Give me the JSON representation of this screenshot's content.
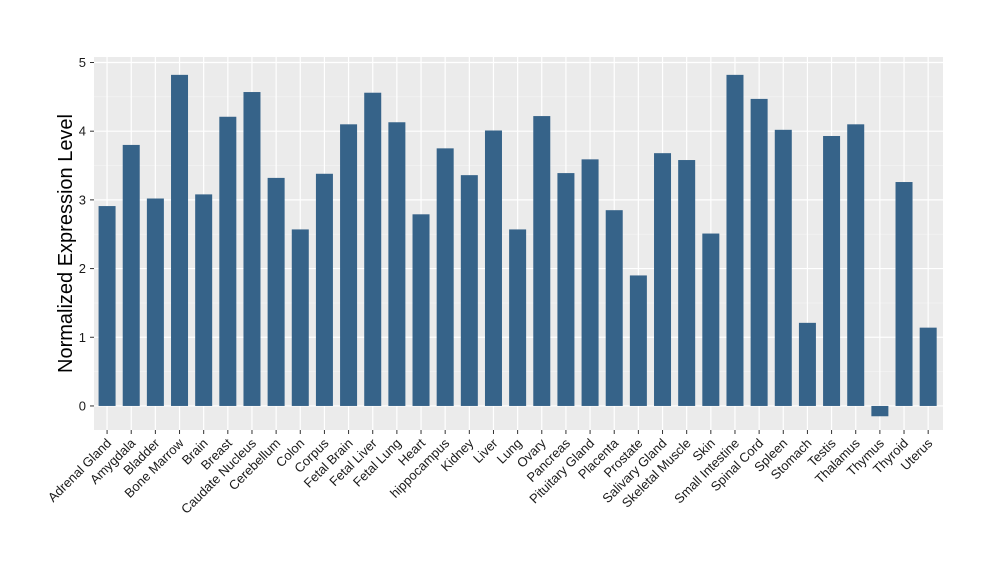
{
  "chart_data": {
    "type": "bar",
    "title": "",
    "xlabel": "",
    "ylabel": "Normalized Expression Level",
    "ylim": [
      -0.35,
      5.08
    ],
    "yticks": [
      0,
      1,
      2,
      3,
      4,
      5
    ],
    "grid": true,
    "legend": "none",
    "colors": {
      "bar": "#366389",
      "panel": "#ebebeb",
      "grid_major": "#ffffff",
      "grid_minor": "#f5f5f5",
      "tick_text": "#1a1a1a"
    },
    "categories": [
      "Adrenal Gland",
      "Amygdala",
      "Bladder",
      "Bone Marrow",
      "Brain",
      "Breast",
      "Caudate Nucleus",
      "Cerebellum",
      "Colon",
      "Corpus",
      "Fetal Brain",
      "Fetal Liver",
      "Fetal Lung",
      "Heart",
      "hippocampus",
      "Kidney",
      "Liver",
      "Lung",
      "Ovary",
      "Pancreas",
      "Pituitary Gland",
      "Placenta",
      "Prostate",
      "Salivary Gland",
      "Skeletal Muscle",
      "Skin",
      "Small Intestine",
      "Spinal Cord",
      "Spleen",
      "Stomach",
      "Testis",
      "Thalamus",
      "Thymus",
      "Thyroid",
      "Uterus"
    ],
    "values": [
      2.91,
      3.8,
      3.02,
      4.82,
      3.08,
      4.21,
      4.57,
      3.32,
      2.57,
      3.38,
      4.1,
      4.56,
      4.13,
      2.79,
      3.75,
      3.36,
      4.01,
      2.57,
      4.22,
      3.39,
      3.59,
      2.85,
      1.9,
      3.68,
      3.58,
      2.51,
      4.82,
      4.47,
      4.02,
      1.21,
      3.93,
      4.1,
      -0.15,
      3.26,
      1.14
    ]
  }
}
